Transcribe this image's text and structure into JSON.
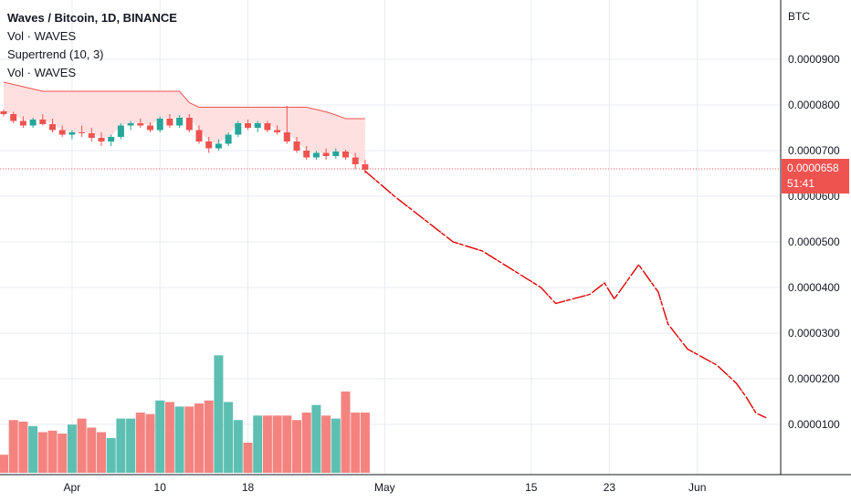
{
  "legend": {
    "title": "Waves / Bitcoin, 1D, BINANCE",
    "line1": "Vol · WAVES",
    "line2": "Supertrend (10, 3)",
    "line3": "Vol · WAVES"
  },
  "price_axis": {
    "unit": "BTC",
    "ticks": [
      "0.0000900",
      "0.0000800",
      "0.0000700",
      "0.0000600",
      "0.0000500",
      "0.0000400",
      "0.0000300",
      "0.0000200",
      "0.0000100"
    ]
  },
  "last_price": {
    "value": "0.0000658",
    "countdown": "51:41",
    "color": "#ef5350"
  },
  "time_axis": {
    "ticks": [
      "Apr",
      "10",
      "18",
      "May",
      "15",
      "23",
      "Jun"
    ]
  },
  "chart_data": {
    "type": "candlestick",
    "title": "Waves / Bitcoin, 1D, BINANCE",
    "ylabel": "BTC",
    "ylim": [
      0.0,
      0.0001
    ],
    "colors": {
      "up": "#26a69a",
      "down": "#ef5350",
      "supertrend": "#ef5350",
      "supertrend_fill": "#ffe0e0",
      "drawing": "#e00000"
    },
    "candles": [
      {
        "o": 7.86,
        "h": 7.9,
        "l": 7.75,
        "c": 7.8
      },
      {
        "o": 7.8,
        "h": 7.85,
        "l": 7.6,
        "c": 7.65
      },
      {
        "o": 7.65,
        "h": 7.75,
        "l": 7.5,
        "c": 7.55
      },
      {
        "o": 7.55,
        "h": 7.72,
        "l": 7.5,
        "c": 7.68
      },
      {
        "o": 7.68,
        "h": 7.8,
        "l": 7.55,
        "c": 7.58
      },
      {
        "o": 7.58,
        "h": 7.7,
        "l": 7.4,
        "c": 7.45
      },
      {
        "o": 7.45,
        "h": 7.55,
        "l": 7.3,
        "c": 7.35
      },
      {
        "o": 7.35,
        "h": 7.45,
        "l": 7.25,
        "c": 7.4
      },
      {
        "o": 7.4,
        "h": 7.55,
        "l": 7.3,
        "c": 7.38
      },
      {
        "o": 7.38,
        "h": 7.5,
        "l": 7.2,
        "c": 7.28
      },
      {
        "o": 7.28,
        "h": 7.4,
        "l": 7.1,
        "c": 7.2
      },
      {
        "o": 7.2,
        "h": 7.35,
        "l": 7.1,
        "c": 7.3
      },
      {
        "o": 7.3,
        "h": 7.6,
        "l": 7.25,
        "c": 7.55
      },
      {
        "o": 7.55,
        "h": 7.65,
        "l": 7.45,
        "c": 7.6
      },
      {
        "o": 7.6,
        "h": 7.7,
        "l": 7.5,
        "c": 7.55
      },
      {
        "o": 7.55,
        "h": 7.62,
        "l": 7.4,
        "c": 7.45
      },
      {
        "o": 7.45,
        "h": 7.75,
        "l": 7.4,
        "c": 7.7
      },
      {
        "o": 7.7,
        "h": 7.8,
        "l": 7.5,
        "c": 7.55
      },
      {
        "o": 7.55,
        "h": 7.78,
        "l": 7.5,
        "c": 7.72
      },
      {
        "o": 7.72,
        "h": 7.8,
        "l": 7.4,
        "c": 7.45
      },
      {
        "o": 7.45,
        "h": 7.55,
        "l": 7.15,
        "c": 7.2
      },
      {
        "o": 7.2,
        "h": 7.3,
        "l": 6.95,
        "c": 7.05
      },
      {
        "o": 7.05,
        "h": 7.25,
        "l": 7.0,
        "c": 7.15
      },
      {
        "o": 7.15,
        "h": 7.4,
        "l": 7.1,
        "c": 7.35
      },
      {
        "o": 7.35,
        "h": 7.65,
        "l": 7.3,
        "c": 7.6
      },
      {
        "o": 7.6,
        "h": 7.68,
        "l": 7.45,
        "c": 7.5
      },
      {
        "o": 7.5,
        "h": 7.65,
        "l": 7.4,
        "c": 7.6
      },
      {
        "o": 7.6,
        "h": 7.65,
        "l": 7.4,
        "c": 7.45
      },
      {
        "o": 7.45,
        "h": 7.55,
        "l": 7.35,
        "c": 7.4
      },
      {
        "o": 7.4,
        "h": 7.98,
        "l": 7.15,
        "c": 7.2
      },
      {
        "o": 7.2,
        "h": 7.3,
        "l": 6.95,
        "c": 7.0
      },
      {
        "o": 7.0,
        "h": 7.1,
        "l": 6.8,
        "c": 6.85
      },
      {
        "o": 6.85,
        "h": 7.0,
        "l": 6.8,
        "c": 6.95
      },
      {
        "o": 6.95,
        "h": 7.05,
        "l": 6.8,
        "c": 6.88
      },
      {
        "o": 6.88,
        "h": 7.05,
        "l": 6.82,
        "c": 6.98
      },
      {
        "o": 6.98,
        "h": 7.02,
        "l": 6.8,
        "c": 6.85
      },
      {
        "o": 6.85,
        "h": 6.95,
        "l": 6.6,
        "c": 6.7
      },
      {
        "o": 6.7,
        "h": 6.8,
        "l": 6.5,
        "c": 6.58
      }
    ],
    "supertrend": [
      8.5,
      8.45,
      8.4,
      8.35,
      8.3,
      8.3,
      8.3,
      8.3,
      8.3,
      8.3,
      8.3,
      8.3,
      8.3,
      8.3,
      8.3,
      8.3,
      8.3,
      8.3,
      8.3,
      8.05,
      7.95,
      7.95,
      7.95,
      7.95,
      7.95,
      7.95,
      7.95,
      7.95,
      7.95,
      7.95,
      7.95,
      7.95,
      7.9,
      7.85,
      7.78,
      7.7,
      7.7,
      7.7
    ],
    "volume": [
      12,
      35,
      34,
      31,
      27,
      28,
      26,
      32,
      36,
      30,
      27,
      23,
      36,
      36,
      40,
      39,
      48,
      47,
      44,
      44,
      46,
      48,
      78,
      47,
      35,
      20,
      38,
      38,
      38,
      38,
      35,
      40,
      45,
      38,
      36,
      54,
      40,
      40
    ],
    "projection_drawing": [
      [
        37,
        6.55
      ],
      [
        40,
        6.0
      ],
      [
        43,
        5.5
      ],
      [
        46,
        5.0
      ],
      [
        49,
        4.8
      ],
      [
        52,
        4.4
      ],
      [
        55,
        4.0
      ],
      [
        56.5,
        3.65
      ],
      [
        60,
        3.85
      ],
      [
        61.5,
        4.1
      ],
      [
        62.5,
        3.75
      ],
      [
        65,
        4.5
      ],
      [
        67,
        3.9
      ],
      [
        68,
        3.2
      ],
      [
        70,
        2.65
      ],
      [
        73,
        2.3
      ],
      [
        75,
        1.9
      ],
      [
        76,
        1.6
      ],
      [
        77,
        1.25
      ],
      [
        78,
        1.15
      ]
    ],
    "x_ticks": [
      {
        "label": "Apr",
        "i": 7
      },
      {
        "label": "10",
        "i": 16
      },
      {
        "label": "18",
        "i": 25
      },
      {
        "label": "May",
        "i": 39
      },
      {
        "label": "15",
        "i": 54
      },
      {
        "label": "23",
        "i": 62
      },
      {
        "label": "Jun",
        "i": 71
      }
    ]
  }
}
